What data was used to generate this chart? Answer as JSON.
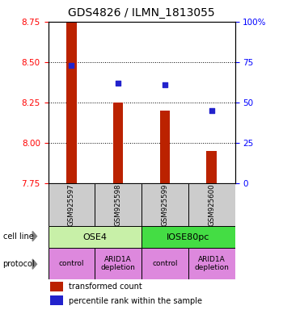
{
  "title": "GDS4826 / ILMN_1813055",
  "samples": [
    "GSM925597",
    "GSM925598",
    "GSM925599",
    "GSM925600"
  ],
  "bar_values": [
    8.75,
    8.25,
    8.2,
    7.95
  ],
  "bar_bottom": 7.75,
  "dot_values": [
    8.48,
    8.37,
    8.36,
    8.2
  ],
  "ylim": [
    7.75,
    8.75
  ],
  "yticks": [
    7.75,
    8.0,
    8.25,
    8.5,
    8.75
  ],
  "right_yticks": [
    0,
    25,
    50,
    75,
    100
  ],
  "right_ylabels": [
    "0",
    "25",
    "50",
    "75",
    "100%"
  ],
  "bar_color": "#bb2200",
  "dot_color": "#2222cc",
  "cell_line_labels": [
    "OSE4",
    "IOSE80pc"
  ],
  "cell_line_spans": [
    [
      0,
      2
    ],
    [
      2,
      4
    ]
  ],
  "cell_line_colors": [
    "#c8f0a8",
    "#44dd44"
  ],
  "protocol_labels": [
    "control",
    "ARID1A\ndepletion",
    "control",
    "ARID1A\ndepletion"
  ],
  "protocol_color": "#dd88dd",
  "sample_box_color": "#cccccc",
  "legend_bar_label": "transformed count",
  "legend_dot_label": "percentile rank within the sample",
  "title_fontsize": 10,
  "tick_fontsize": 7.5
}
